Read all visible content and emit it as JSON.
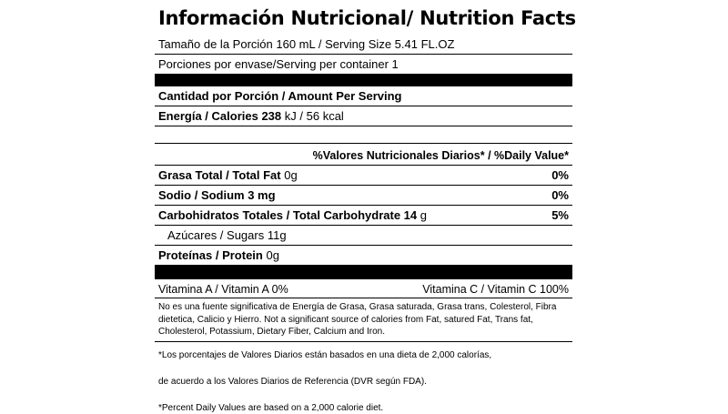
{
  "title": "Información Nutricional/ Nutrition Facts",
  "serving_size": "Tamaño de la Porción 160 mL / Serving Size 5.41 FL.OZ",
  "servings_per_container": "Porciones por envase/Serving per container 1",
  "amount_per_serving": "Cantidad por Porción / Amount Per Serving",
  "energy": {
    "label": "Energía / Calories",
    "value": "238",
    "unit": "kJ / 56 kcal"
  },
  "daily_value_header": "%Valores Nutricionales Diarios* /  %Daily Value*",
  "nutrients": [
    {
      "label": "Grasa Total / Total Fat",
      "amount": "0g",
      "pct": "0%"
    },
    {
      "label": "Sodio / Sodium 3 mg",
      "amount": "",
      "pct": "0%"
    },
    {
      "label": "Carbohidratos Totales  / Total Carbohydrate  14",
      "amount": "g",
      "pct": "5%"
    },
    {
      "label": "Azúcares / Sugars 11g",
      "amount": "",
      "pct": ""
    },
    {
      "label": "Proteínas / Protein",
      "amount": "0g",
      "pct": ""
    }
  ],
  "vitamins": {
    "a": "Vitamina A / Vitamin A 0%",
    "c": "Vitamina C / Vitamin C 100%"
  },
  "note": "No es una fuente significativa de Energía de Grasa, Grasa saturada, Grasa trans, Colesterol, Fibra dietetica, Calicio y Hierro. Not a significant source of calories from Fat, satured Fat, Trans fat, Cholesterol, Potassium, Dietary Fiber, Calcium and Iron.",
  "footnotes": [
    "*Los porcentajes de Valores Diarios están basados en una dieta de 2,000 calorías,",
    "de acuerdo  a los Valores Diarios de Referencia (DVR según FDA).",
    "*Percent Daily Values are based on a 2,000 calorie diet."
  ]
}
